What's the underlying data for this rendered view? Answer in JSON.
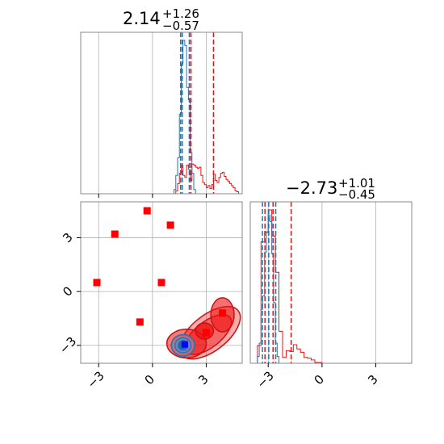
{
  "chart_data": {
    "type": "corner",
    "grid": true,
    "colors": {
      "red": "#ee1111",
      "blue": "#1f77b4",
      "marker": "#ff0000",
      "truth": "#0000ff",
      "frame": "#888888",
      "grid": "#b0b0b0"
    },
    "param1": {
      "title": {
        "main": "2.14",
        "sup": "+1.26",
        "sub": "−0.57"
      },
      "xlim": [
        -4,
        5
      ],
      "quantiles_red": [
        1.57,
        2.14,
        3.4
      ],
      "quantiles_blue": [
        1.57,
        1.66,
        2.05
      ],
      "ticks": [
        -3,
        0,
        3
      ],
      "tick_labels": [
        "−3",
        "0",
        "3"
      ]
    },
    "param2": {
      "title": {
        "main": "−2.73",
        "sup": "+1.01",
        "sub": "−0.45"
      },
      "xlim": [
        -4,
        5
      ],
      "quantiles_red": [
        -3.18,
        -2.73,
        -1.72
      ],
      "quantiles_blue": [
        -3.32,
        -2.97,
        -2.58
      ],
      "ticks": [
        -3,
        0,
        3
      ],
      "tick_labels": [
        "−3",
        "0",
        "3"
      ]
    },
    "hist_red_1": {
      "bins": [
        1.3,
        1.4,
        1.5,
        1.6,
        1.7,
        1.8,
        1.9,
        2.0,
        2.1,
        2.2,
        2.3,
        2.4,
        2.5,
        2.6,
        2.7,
        2.8,
        2.9,
        3.0,
        3.1,
        3.2,
        3.3,
        3.4,
        3.5,
        3.6,
        3.7,
        3.8,
        3.9,
        4.0,
        4.1,
        4.2,
        4.3,
        4.4,
        4.5,
        4.6,
        4.7,
        4.8
      ],
      "counts": [
        3,
        10,
        20,
        28,
        18,
        16,
        28,
        24,
        13,
        29,
        28,
        26,
        25,
        26,
        18,
        11,
        9,
        6,
        8,
        5,
        9,
        19,
        13,
        11,
        16,
        20,
        21,
        17,
        14,
        12,
        10,
        8,
        6,
        3,
        2
      ]
    },
    "hist_blue_1": {
      "bins": [
        1.2,
        1.3,
        1.4,
        1.5,
        1.6,
        1.7,
        1.8,
        1.9,
        2.0,
        2.1,
        2.2,
        2.3,
        2.4
      ],
      "counts": [
        4,
        18,
        35,
        78,
        127,
        150,
        145,
        104,
        92,
        40,
        20,
        4
      ]
    },
    "hist_red_2": {
      "bins": [
        -3.6,
        -3.4,
        -3.2,
        -3.0,
        -2.8,
        -2.6,
        -2.4,
        -2.2,
        -2.0,
        -1.8,
        -1.6,
        -1.4,
        -1.2,
        -1.0,
        -0.8,
        -0.6,
        -0.4,
        -0.2,
        0.0
      ],
      "counts": [
        21,
        144,
        156,
        182,
        151,
        108,
        38,
        7,
        15,
        14,
        22,
        17,
        13,
        7,
        6,
        4,
        1,
        1
      ]
    },
    "hist_blue_2": {
      "bins": [
        -3.6,
        -3.5,
        -3.4,
        -3.3,
        -3.2,
        -3.1,
        -3.0,
        -2.9,
        -2.8,
        -2.7,
        -2.6,
        -2.5,
        -2.4
      ],
      "counts": [
        8,
        24,
        64,
        80,
        132,
        155,
        176,
        168,
        130,
        72,
        24,
        8
      ]
    },
    "contours_red": [
      {
        "cx": 3.2,
        "cy": -2.3,
        "rx": 2.0,
        "ry": 1.0,
        "angle": 38,
        "alpha": 0.35
      },
      {
        "cx": 3.1,
        "cy": -2.4,
        "rx": 1.55,
        "ry": 0.72,
        "angle": 38,
        "alpha": 0.45
      },
      {
        "cx": 3.9,
        "cy": -1.3,
        "rx": 0.65,
        "ry": 0.95,
        "angle": 0,
        "alpha": 0.6
      },
      {
        "cx": 1.9,
        "cy": -2.9,
        "rx": 1.1,
        "ry": 0.8,
        "angle": 0,
        "alpha": 0.55
      },
      {
        "cx": 2.9,
        "cy": -2.2,
        "rx": 0.5,
        "ry": 0.45,
        "angle": 0,
        "alpha": 0.75
      },
      {
        "cx": 1.7,
        "cy": -3.0,
        "rx": 0.6,
        "ry": 0.55,
        "angle": 0,
        "alpha": 0.8
      }
    ],
    "contours_blue": [
      {
        "cx": 1.7,
        "cy": -3.0,
        "rx": 0.65,
        "ry": 0.6,
        "fill": "#aec7e8",
        "alpha": 0.45
      },
      {
        "cx": 1.7,
        "cy": -3.0,
        "rx": 0.45,
        "ry": 0.42,
        "fill": "#4f8fcf",
        "alpha": 0.7
      },
      {
        "cx": 1.7,
        "cy": -3.0,
        "rx": 0.27,
        "ry": 0.27,
        "fill": "#1f5fb4",
        "alpha": 0.9
      }
    ],
    "markers": [
      {
        "x": -3.1,
        "y": 0.5
      },
      {
        "x": -2.1,
        "y": 3.2
      },
      {
        "x": -0.3,
        "y": 4.5
      },
      {
        "x": 1.0,
        "y": 3.7
      },
      {
        "x": 0.5,
        "y": 0.5
      },
      {
        "x": -0.7,
        "y": -1.7
      },
      {
        "x": 3.9,
        "y": -1.2
      },
      {
        "x": 3.0,
        "y": -2.3
      }
    ],
    "truth": {
      "x": 1.8,
      "y": -2.95
    }
  }
}
